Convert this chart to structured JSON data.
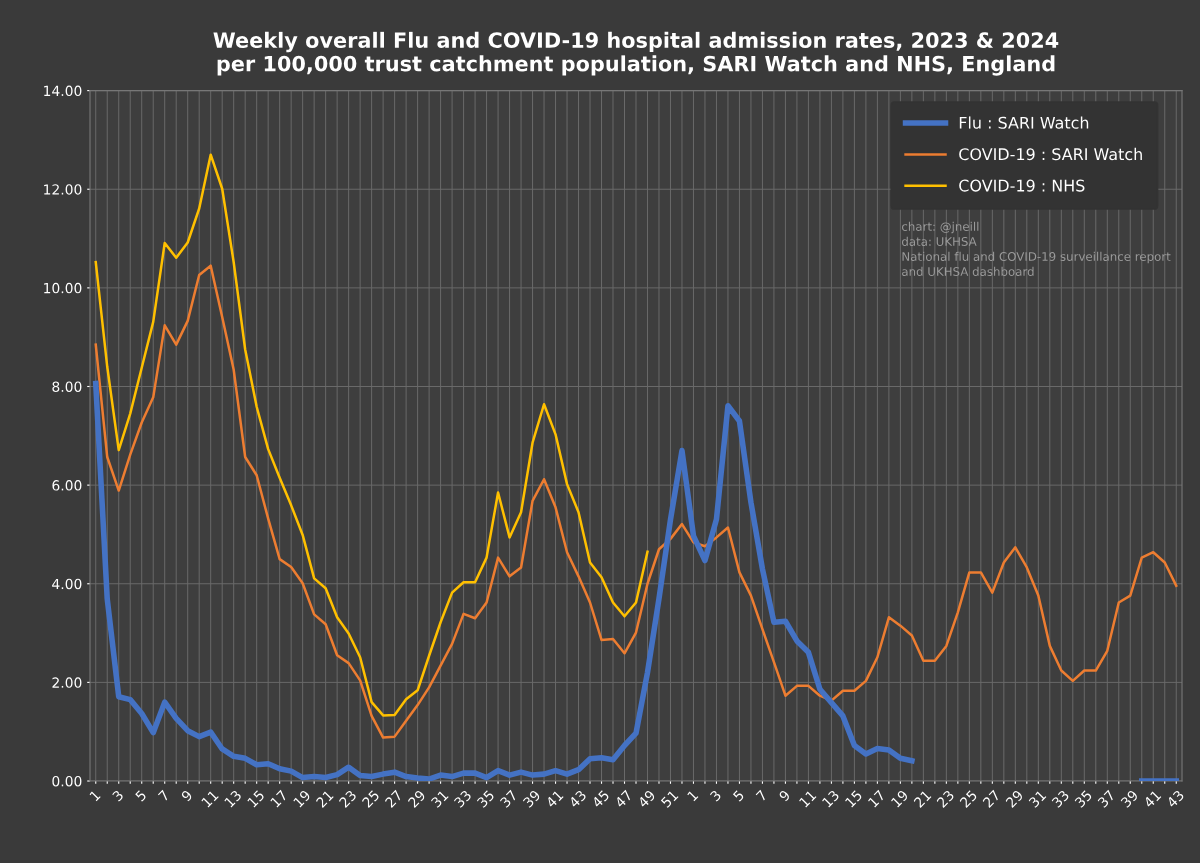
{
  "chart_data": {
    "type": "line",
    "title": "Weekly overall Flu and COVID-19 hospital admission rates, 2023 & 2024\nper 100,000 trust catchment population, SARI Watch and NHS, England",
    "categories": [
      "1",
      null,
      "3",
      null,
      "5",
      null,
      "7",
      null,
      "9",
      null,
      "11",
      null,
      "13",
      null,
      "15",
      null,
      "17",
      null,
      "19",
      null,
      "21",
      null,
      "23",
      null,
      "25",
      null,
      "27",
      null,
      "29",
      null,
      "31",
      null,
      "33",
      null,
      "35",
      null,
      "37",
      null,
      "39",
      null,
      "41",
      null,
      "43",
      null,
      "45",
      null,
      "47",
      null,
      "49",
      null,
      "51",
      null,
      "1",
      null,
      "3",
      null,
      "5",
      null,
      "7",
      null,
      "9",
      null,
      "11",
      null,
      "13",
      null,
      "15",
      null,
      "17",
      null,
      "19",
      null,
      "21",
      null,
      "23",
      null,
      "25",
      null,
      "27",
      null,
      "29",
      null,
      "31",
      null,
      "33",
      null,
      "35",
      null,
      "37",
      null,
      "39",
      null,
      "41",
      null,
      "43"
    ],
    "series": [
      {
        "name": "Flu : SARI Watch",
        "color": "#4472c4",
        "values": [
          8.06,
          3.69,
          1.71,
          1.65,
          1.37,
          0.98,
          1.6,
          1.27,
          1.02,
          0.9,
          0.99,
          0.65,
          0.5,
          0.46,
          0.33,
          0.35,
          0.25,
          0.2,
          0.07,
          0.09,
          0.07,
          0.13,
          0.28,
          0.11,
          0.09,
          0.14,
          0.18,
          0.09,
          0.06,
          0.04,
          0.12,
          0.09,
          0.16,
          0.16,
          0.07,
          0.21,
          0.12,
          0.18,
          0.12,
          0.14,
          0.21,
          0.14,
          0.23,
          0.45,
          0.47,
          0.43,
          0.72,
          0.97,
          2.2,
          3.7,
          5.3,
          6.7,
          4.97,
          4.47,
          5.31,
          7.61,
          7.3,
          5.65,
          4.3,
          3.22,
          3.24,
          2.84,
          2.61,
          1.86,
          1.59,
          1.32,
          0.72,
          0.55,
          0.66,
          0.63,
          0.46,
          0.41,
          null,
          null,
          null,
          null,
          null,
          null,
          null,
          null,
          null,
          null,
          null,
          null,
          null,
          null,
          null,
          null,
          null,
          null,
          null,
          0,
          0,
          0,
          0
        ]
      },
      {
        "name": "COVID-19 : SARI Watch",
        "color": "#ed7d31",
        "values": [
          8.85,
          6.57,
          5.89,
          6.62,
          7.27,
          7.78,
          9.24,
          8.85,
          9.33,
          10.26,
          10.45,
          9.41,
          8.34,
          6.57,
          6.2,
          5.32,
          4.5,
          4.34,
          4.01,
          3.38,
          3.18,
          2.55,
          2.39,
          2.04,
          1.32,
          0.88,
          0.9,
          1.22,
          1.54,
          1.9,
          2.34,
          2.78,
          3.39,
          3.3,
          3.62,
          4.53,
          4.15,
          4.33,
          5.68,
          6.12,
          5.55,
          4.64,
          4.15,
          3.62,
          2.86,
          2.88,
          2.59,
          3.01,
          4.0,
          4.7,
          4.91,
          5.21,
          4.84,
          4.76,
          4.94,
          5.14,
          4.23,
          3.76,
          3.08,
          2.41,
          1.73,
          1.93,
          1.93,
          1.73,
          1.63,
          1.83,
          1.83,
          2.03,
          2.51,
          3.32,
          3.15,
          2.95,
          2.44,
          2.44,
          2.74,
          3.42,
          4.23,
          4.23,
          3.82,
          4.43,
          4.74,
          4.33,
          3.76,
          2.74,
          2.24,
          2.03,
          2.24,
          2.24,
          2.64,
          3.62,
          3.76,
          4.53,
          4.64,
          4.43,
          3.96
        ]
      },
      {
        "name": "COVID-19 : NHS",
        "color": "#ffc000",
        "values": [
          10.52,
          8.4,
          6.71,
          7.45,
          8.38,
          9.31,
          10.91,
          10.61,
          10.92,
          11.61,
          12.7,
          12.01,
          10.52,
          8.75,
          7.59,
          6.73,
          6.15,
          5.59,
          4.99,
          4.11,
          3.91,
          3.32,
          2.99,
          2.51,
          1.6,
          1.33,
          1.34,
          1.66,
          1.84,
          2.54,
          3.22,
          3.82,
          4.03,
          4.03,
          4.53,
          5.85,
          4.94,
          5.45,
          6.86,
          7.64,
          7.03,
          6.02,
          5.45,
          4.43,
          4.13,
          3.62,
          3.34,
          3.62,
          4.65,
          null,
          null,
          null,
          null,
          null,
          null,
          null,
          null,
          null,
          null,
          null,
          null,
          null,
          null,
          null,
          null,
          null,
          null,
          null,
          null,
          null,
          null,
          null,
          null,
          null,
          null,
          null,
          null,
          null,
          null,
          null,
          null,
          null,
          null,
          null,
          null,
          null,
          null,
          null,
          null,
          null,
          null,
          null,
          null,
          null,
          null
        ]
      }
    ],
    "ylim": [
      0,
      14
    ],
    "yticks": [
      {
        "value": 0,
        "label": "0.00"
      },
      {
        "value": 2,
        "label": "2.00"
      },
      {
        "value": 4,
        "label": "4.00"
      },
      {
        "value": 6,
        "label": "6.00"
      },
      {
        "value": 8,
        "label": "8.00"
      },
      {
        "value": 10,
        "label": "10.00"
      },
      {
        "value": 12,
        "label": "12.00"
      },
      {
        "value": 14,
        "label": "14.00"
      }
    ],
    "grid": true,
    "legend": "top right",
    "annotations": [
      "chart: @jneill\ndata: UKHSA\nNational flu and COVID-19 surveillance report\nand UKHSA dashboard"
    ]
  }
}
